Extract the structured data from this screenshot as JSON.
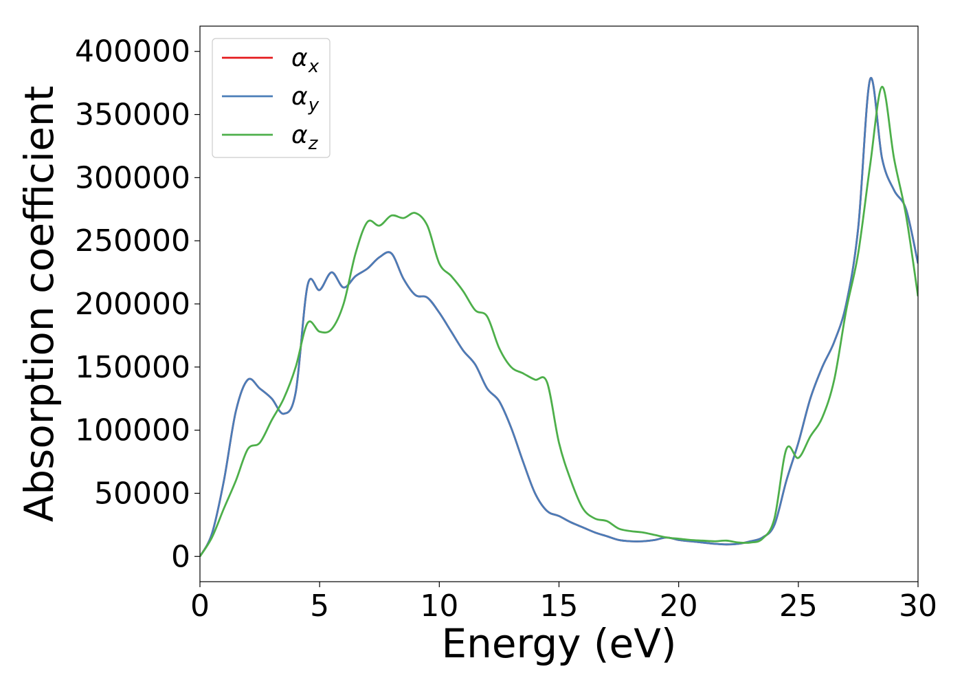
{
  "chart_data": {
    "type": "line",
    "title": "",
    "xlabel": "Energy (eV)",
    "ylabel": "Absorption coefficient",
    "xlim": [
      0,
      30
    ],
    "ylim": [
      -20000,
      420000
    ],
    "xticks": [
      0,
      5,
      10,
      15,
      20,
      25,
      30
    ],
    "yticks": [
      0,
      50000,
      100000,
      150000,
      200000,
      250000,
      300000,
      350000,
      400000
    ],
    "grid": false,
    "legend_position": "top-left",
    "x": [
      0,
      0.5,
      1,
      1.5,
      2,
      2.5,
      3,
      3.5,
      4,
      4.5,
      5,
      5.5,
      6,
      6.5,
      7,
      7.5,
      8,
      8.5,
      9,
      9.5,
      10,
      10.5,
      11,
      11.5,
      12,
      12.5,
      13,
      13.5,
      14,
      14.5,
      15,
      15.5,
      16,
      16.5,
      17,
      17.5,
      18,
      18.5,
      19,
      19.5,
      20,
      20.5,
      21,
      21.5,
      22,
      22.5,
      23,
      23.5,
      24,
      24.5,
      25,
      25.5,
      26,
      26.5,
      27,
      27.5,
      28,
      28.5,
      29,
      29.5,
      30
    ],
    "series": [
      {
        "name": "α",
        "subscript": "x",
        "color": "#e41a1c",
        "values": [
          0,
          18000,
          60000,
          115000,
          140000,
          133000,
          125000,
          113000,
          130000,
          215000,
          211000,
          225000,
          213000,
          222000,
          228000,
          237000,
          240000,
          220000,
          207000,
          205000,
          193000,
          178000,
          163000,
          152000,
          133000,
          123000,
          102000,
          75000,
          50000,
          36000,
          32000,
          27000,
          23000,
          19000,
          16000,
          13000,
          12000,
          12000,
          13000,
          15000,
          13000,
          12000,
          11000,
          10000,
          9500,
          10000,
          12000,
          15000,
          25000,
          60000,
          90000,
          125000,
          150000,
          170000,
          200000,
          260000,
          378000,
          315000,
          290000,
          275000,
          232000
        ]
      },
      {
        "name": "α",
        "subscript": "y",
        "color": "#4a7db8",
        "values": [
          0,
          18000,
          60000,
          115000,
          140000,
          133000,
          125000,
          113000,
          130000,
          215000,
          211000,
          225000,
          213000,
          222000,
          228000,
          237000,
          240000,
          220000,
          207000,
          205000,
          193000,
          178000,
          163000,
          152000,
          133000,
          123000,
          102000,
          75000,
          50000,
          36000,
          32000,
          27000,
          23000,
          19000,
          16000,
          13000,
          12000,
          12000,
          13000,
          15000,
          13000,
          12000,
          11000,
          10000,
          9500,
          10000,
          12000,
          15000,
          25000,
          60000,
          90000,
          125000,
          150000,
          170000,
          200000,
          260000,
          378000,
          315000,
          290000,
          275000,
          232000
        ]
      },
      {
        "name": "α",
        "subscript": "z",
        "color": "#4daf4a",
        "values": [
          0,
          15000,
          38000,
          60000,
          85000,
          90000,
          108000,
          125000,
          150000,
          185000,
          178000,
          180000,
          200000,
          240000,
          265000,
          262000,
          270000,
          268000,
          272000,
          262000,
          232000,
          222000,
          210000,
          195000,
          190000,
          165000,
          150000,
          145000,
          140000,
          138000,
          90000,
          60000,
          38000,
          30000,
          28000,
          22000,
          20000,
          19000,
          17000,
          15000,
          14000,
          13000,
          12500,
          12000,
          12500,
          11000,
          11000,
          14000,
          30000,
          85000,
          78000,
          95000,
          110000,
          140000,
          195000,
          240000,
          310000,
          372000,
          315000,
          270000,
          206000
        ]
      }
    ]
  }
}
